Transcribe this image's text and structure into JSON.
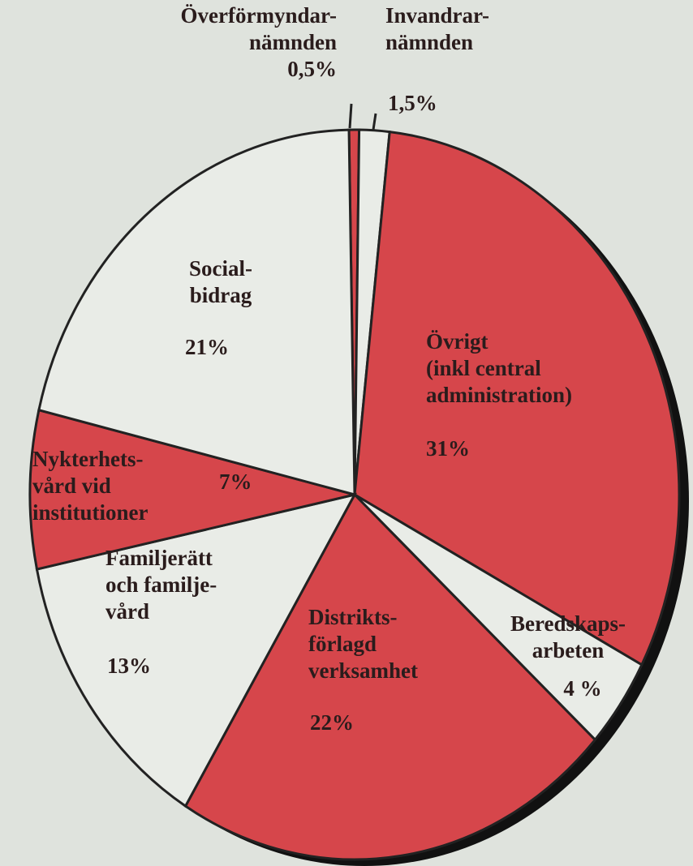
{
  "chart_data": {
    "type": "pie",
    "categories": [
      "Överförmyndar-\nnämnden",
      "Invandrar-\nnämnden",
      "Övrigt\n(inkl central\nadministration)",
      "Beredskaps-\narbeten",
      "Distrikts-\nförlagd\nverksamhet",
      "Familjerätt\noch familje-\nvård",
      "Nykterhets-\nvård vid\ninstitutioner",
      "Social-\nbidrag"
    ],
    "values": [
      0.5,
      1.5,
      31,
      4,
      22,
      13,
      7,
      21
    ],
    "value_labels": [
      "0,5%",
      "1,5%",
      "31%",
      "4 %",
      "22%",
      "13%",
      "7%",
      "21%"
    ],
    "colors": [
      "#d6464b",
      "#e9ece7",
      "#d6464b",
      "#e9ece7",
      "#d6464b",
      "#e9ece7",
      "#d6464b",
      "#e9ece7"
    ]
  }
}
